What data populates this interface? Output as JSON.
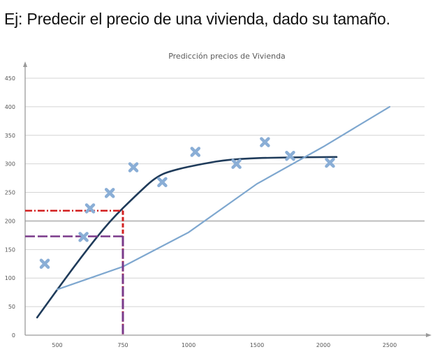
{
  "heading": "Ej: Predecir el precio de una vivienda, dado su tamaño.",
  "chart_data": {
    "type": "scatter",
    "title": "Predicción precios de Vivienda",
    "xlabel": "",
    "ylabel": "",
    "x_ticks": [
      "500",
      "750",
      "1000",
      "1500",
      "2000",
      "2500"
    ],
    "y_ticks": [
      "0",
      "50",
      "100",
      "150",
      "200",
      "250",
      "300",
      "350",
      "400",
      "450"
    ],
    "ylim": [
      0,
      450
    ],
    "grid": true,
    "points": [
      {
        "x": 450,
        "y": 125
      },
      {
        "x": 600,
        "y": 172
      },
      {
        "x": 625,
        "y": 222
      },
      {
        "x": 700,
        "y": 249
      },
      {
        "x": 790,
        "y": 294
      },
      {
        "x": 900,
        "y": 268
      },
      {
        "x": 1050,
        "y": 321
      },
      {
        "x": 1350,
        "y": 300
      },
      {
        "x": 1560,
        "y": 338
      },
      {
        "x": 1750,
        "y": 314
      },
      {
        "x": 2050,
        "y": 302
      }
    ],
    "series": [
      {
        "values": [
          [
            420,
            31
          ],
          [
            500,
            80
          ],
          [
            600,
            142
          ],
          [
            700,
            200
          ],
          [
            800,
            245
          ],
          [
            880,
            279
          ],
          [
            950,
            290
          ],
          [
            1100,
            300
          ],
          [
            1300,
            308
          ],
          [
            1600,
            311
          ],
          [
            2100,
            312
          ]
        ],
        "color": "#1f3b5a"
      },
      {
        "values": [
          [
            500,
            80
          ],
          [
            750,
            120
          ],
          [
            1000,
            180
          ],
          [
            1500,
            265
          ],
          [
            2000,
            330
          ],
          [
            2500,
            400
          ]
        ],
        "color": "#7ea7cf"
      }
    ],
    "guides": [
      {
        "x": 750,
        "y": 218,
        "color": "#d22020"
      },
      {
        "x": 750,
        "y": 173,
        "color": "#7a3a8a"
      }
    ],
    "marker_color": "#8aaed6"
  }
}
